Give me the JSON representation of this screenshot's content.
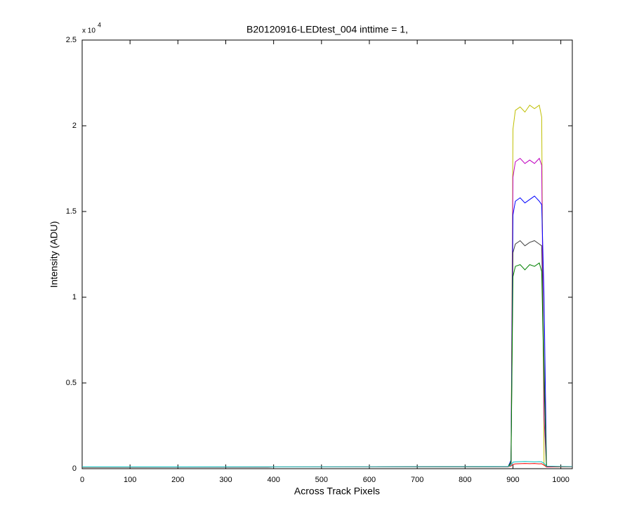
{
  "chart_data": {
    "type": "line",
    "title": "B20120916-LEDtest_004 inttime = 1,",
    "x_label": "Across Track Pixels",
    "y_label": "Intensity (ADU)",
    "y_exponent_base": "x 10",
    "y_exponent": "4",
    "x": [
      0,
      200,
      400,
      600,
      800,
      890,
      896,
      900,
      905,
      915,
      925,
      935,
      945,
      955,
      960,
      965,
      970,
      1000,
      1024
    ],
    "series": [
      {
        "name": "yellow",
        "color": "#bfbf00",
        "values": [
          90,
          95,
          100,
          105,
          110,
          120,
          300,
          19800,
          20900,
          21100,
          20800,
          21200,
          21000,
          21200,
          20500,
          200,
          100,
          110,
          100
        ]
      },
      {
        "name": "magenta",
        "color": "#bf00bf",
        "values": [
          90,
          95,
          100,
          105,
          110,
          120,
          300,
          17000,
          17900,
          18100,
          17800,
          18000,
          17800,
          18100,
          17700,
          3000,
          100,
          110,
          100
        ]
      },
      {
        "name": "blue",
        "color": "#0000ff",
        "values": [
          90,
          95,
          100,
          105,
          110,
          120,
          500,
          14800,
          15600,
          15800,
          15500,
          15700,
          15900,
          15600,
          15400,
          10000,
          150,
          110,
          100
        ]
      },
      {
        "name": "black",
        "color": "#404040",
        "values": [
          90,
          95,
          100,
          105,
          110,
          120,
          300,
          12600,
          13100,
          13300,
          13000,
          13200,
          13300,
          13100,
          13000,
          6000,
          120,
          110,
          100
        ]
      },
      {
        "name": "green",
        "color": "#008000",
        "values": [
          90,
          95,
          100,
          105,
          110,
          120,
          400,
          11200,
          11800,
          11900,
          11600,
          11900,
          11800,
          12000,
          11500,
          5000,
          130,
          110,
          100
        ]
      },
      {
        "name": "red",
        "color": "#ff0000",
        "values": [
          90,
          95,
          100,
          105,
          110,
          120,
          150,
          250,
          280,
          290,
          300,
          290,
          300,
          280,
          290,
          200,
          120,
          110,
          100
        ]
      },
      {
        "name": "cyan",
        "color": "#00bfbf",
        "values": [
          100,
          105,
          110,
          115,
          120,
          130,
          200,
          380,
          400,
          410,
          420,
          410,
          400,
          410,
          400,
          300,
          150,
          130,
          120
        ]
      }
    ],
    "xlim": [
      0,
      1024
    ],
    "ylim": [
      0,
      25000
    ],
    "xticks": [
      0,
      100,
      200,
      300,
      400,
      500,
      600,
      700,
      800,
      900,
      1000
    ],
    "yticks": [
      0,
      {
        "value": 5000,
        "label": "0.5"
      },
      {
        "value": 10000,
        "label": "1"
      },
      {
        "value": 15000,
        "label": "1.5"
      },
      {
        "value": 20000,
        "label": "2"
      },
      {
        "value": 25000,
        "label": "2.5"
      }
    ],
    "grid": false
  }
}
